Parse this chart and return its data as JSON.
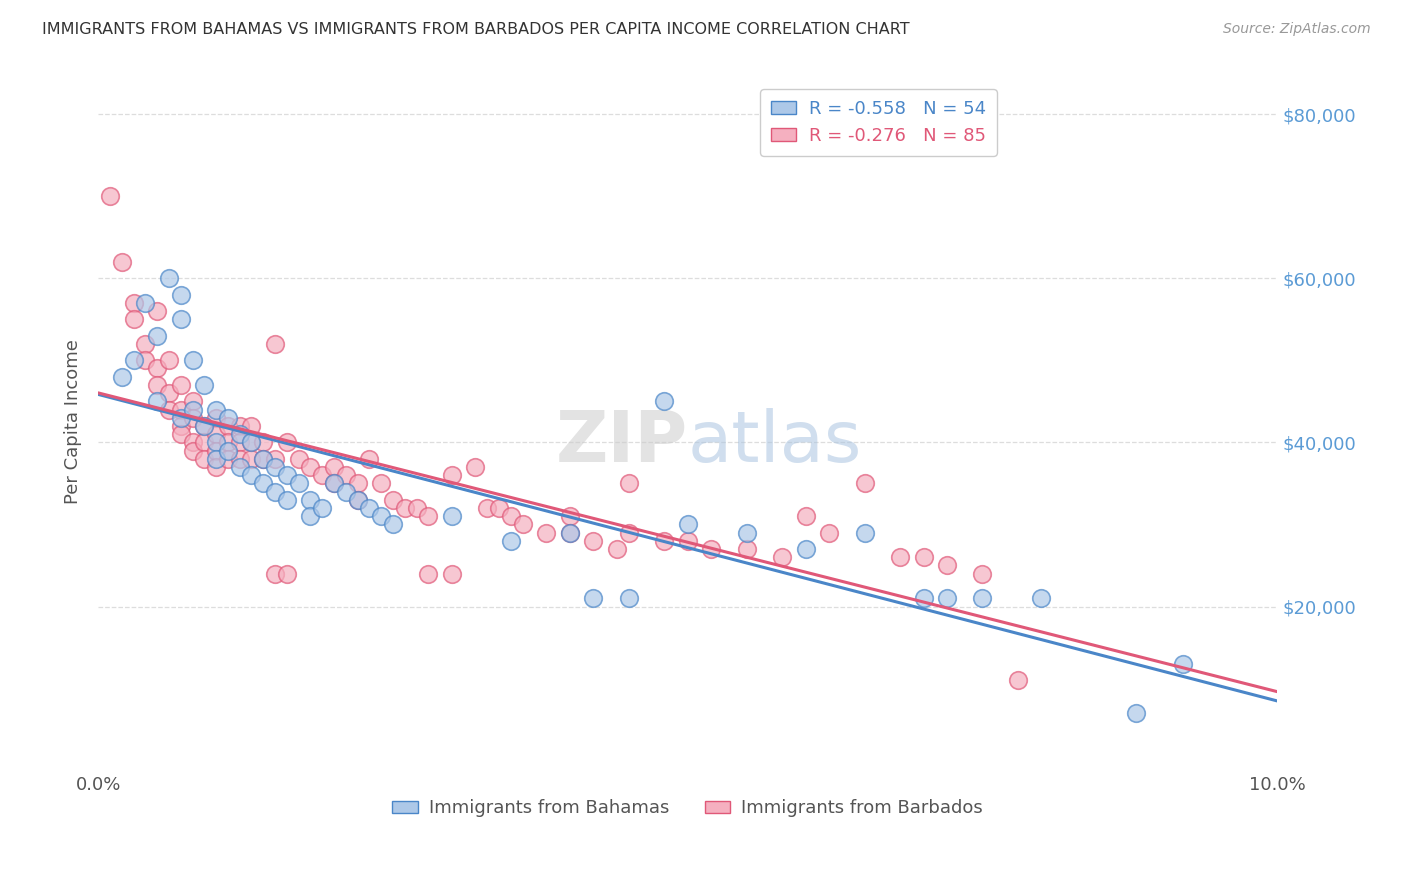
{
  "title": "IMMIGRANTS FROM BAHAMAS VS IMMIGRANTS FROM BARBADOS PER CAPITA INCOME CORRELATION CHART",
  "source": "Source: ZipAtlas.com",
  "ylabel": "Per Capita Income",
  "legend_bahamas": "Immigrants from Bahamas",
  "legend_barbados": "Immigrants from Barbados",
  "r_bahamas": -0.558,
  "n_bahamas": 54,
  "r_barbados": -0.276,
  "n_barbados": 85,
  "color_bahamas": "#adc8e8",
  "color_barbados": "#f5b0c0",
  "line_bahamas": "#4a86c8",
  "line_barbados": "#e05878",
  "watermark_zip": "ZIP",
  "watermark_atlas": "atlas",
  "ytick_labels": [
    "$20,000",
    "$40,000",
    "$60,000",
    "$80,000"
  ],
  "ytick_values": [
    20000,
    40000,
    60000,
    80000
  ],
  "xlim": [
    0.0,
    0.1
  ],
  "ylim": [
    0,
    85000
  ],
  "bahamas_points": [
    [
      0.002,
      48000
    ],
    [
      0.003,
      50000
    ],
    [
      0.004,
      57000
    ],
    [
      0.005,
      53000
    ],
    [
      0.005,
      45000
    ],
    [
      0.006,
      60000
    ],
    [
      0.007,
      58000
    ],
    [
      0.007,
      55000
    ],
    [
      0.007,
      43000
    ],
    [
      0.008,
      50000
    ],
    [
      0.008,
      44000
    ],
    [
      0.009,
      47000
    ],
    [
      0.009,
      42000
    ],
    [
      0.01,
      44000
    ],
    [
      0.01,
      40000
    ],
    [
      0.01,
      38000
    ],
    [
      0.011,
      43000
    ],
    [
      0.011,
      39000
    ],
    [
      0.012,
      41000
    ],
    [
      0.012,
      37000
    ],
    [
      0.013,
      40000
    ],
    [
      0.013,
      36000
    ],
    [
      0.014,
      38000
    ],
    [
      0.014,
      35000
    ],
    [
      0.015,
      37000
    ],
    [
      0.015,
      34000
    ],
    [
      0.016,
      36000
    ],
    [
      0.016,
      33000
    ],
    [
      0.017,
      35000
    ],
    [
      0.018,
      33000
    ],
    [
      0.018,
      31000
    ],
    [
      0.019,
      32000
    ],
    [
      0.02,
      35000
    ],
    [
      0.021,
      34000
    ],
    [
      0.022,
      33000
    ],
    [
      0.023,
      32000
    ],
    [
      0.024,
      31000
    ],
    [
      0.025,
      30000
    ],
    [
      0.03,
      31000
    ],
    [
      0.035,
      28000
    ],
    [
      0.04,
      29000
    ],
    [
      0.042,
      21000
    ],
    [
      0.045,
      21000
    ],
    [
      0.048,
      45000
    ],
    [
      0.05,
      30000
    ],
    [
      0.055,
      29000
    ],
    [
      0.06,
      27000
    ],
    [
      0.065,
      29000
    ],
    [
      0.07,
      21000
    ],
    [
      0.072,
      21000
    ],
    [
      0.075,
      21000
    ],
    [
      0.08,
      21000
    ],
    [
      0.088,
      7000
    ],
    [
      0.092,
      13000
    ]
  ],
  "barbados_points": [
    [
      0.001,
      70000
    ],
    [
      0.002,
      62000
    ],
    [
      0.003,
      57000
    ],
    [
      0.003,
      55000
    ],
    [
      0.004,
      52000
    ],
    [
      0.004,
      50000
    ],
    [
      0.005,
      56000
    ],
    [
      0.005,
      49000
    ],
    [
      0.005,
      47000
    ],
    [
      0.006,
      50000
    ],
    [
      0.006,
      46000
    ],
    [
      0.006,
      44000
    ],
    [
      0.007,
      47000
    ],
    [
      0.007,
      44000
    ],
    [
      0.007,
      42000
    ],
    [
      0.007,
      41000
    ],
    [
      0.008,
      45000
    ],
    [
      0.008,
      43000
    ],
    [
      0.008,
      40000
    ],
    [
      0.008,
      39000
    ],
    [
      0.009,
      42000
    ],
    [
      0.009,
      40000
    ],
    [
      0.009,
      38000
    ],
    [
      0.01,
      43000
    ],
    [
      0.01,
      41000
    ],
    [
      0.01,
      39000
    ],
    [
      0.01,
      37000
    ],
    [
      0.011,
      42000
    ],
    [
      0.011,
      40000
    ],
    [
      0.011,
      38000
    ],
    [
      0.012,
      42000
    ],
    [
      0.012,
      40000
    ],
    [
      0.012,
      38000
    ],
    [
      0.013,
      42000
    ],
    [
      0.013,
      40000
    ],
    [
      0.013,
      38000
    ],
    [
      0.014,
      40000
    ],
    [
      0.014,
      38000
    ],
    [
      0.015,
      52000
    ],
    [
      0.015,
      38000
    ],
    [
      0.015,
      24000
    ],
    [
      0.016,
      40000
    ],
    [
      0.016,
      24000
    ],
    [
      0.017,
      38000
    ],
    [
      0.018,
      37000
    ],
    [
      0.019,
      36000
    ],
    [
      0.02,
      37000
    ],
    [
      0.02,
      35000
    ],
    [
      0.021,
      36000
    ],
    [
      0.022,
      35000
    ],
    [
      0.022,
      33000
    ],
    [
      0.023,
      38000
    ],
    [
      0.024,
      35000
    ],
    [
      0.025,
      33000
    ],
    [
      0.026,
      32000
    ],
    [
      0.027,
      32000
    ],
    [
      0.028,
      31000
    ],
    [
      0.028,
      24000
    ],
    [
      0.03,
      36000
    ],
    [
      0.03,
      24000
    ],
    [
      0.032,
      37000
    ],
    [
      0.033,
      32000
    ],
    [
      0.034,
      32000
    ],
    [
      0.035,
      31000
    ],
    [
      0.036,
      30000
    ],
    [
      0.038,
      29000
    ],
    [
      0.04,
      31000
    ],
    [
      0.04,
      29000
    ],
    [
      0.042,
      28000
    ],
    [
      0.044,
      27000
    ],
    [
      0.045,
      35000
    ],
    [
      0.045,
      29000
    ],
    [
      0.048,
      28000
    ],
    [
      0.05,
      28000
    ],
    [
      0.052,
      27000
    ],
    [
      0.055,
      27000
    ],
    [
      0.058,
      26000
    ],
    [
      0.06,
      31000
    ],
    [
      0.062,
      29000
    ],
    [
      0.065,
      35000
    ],
    [
      0.068,
      26000
    ],
    [
      0.07,
      26000
    ],
    [
      0.072,
      25000
    ],
    [
      0.075,
      24000
    ],
    [
      0.078,
      11000
    ]
  ],
  "title_color": "#333333",
  "source_color": "#999999",
  "grid_color": "#dddddd",
  "background_color": "#ffffff",
  "right_tick_color": "#5b9bd5"
}
